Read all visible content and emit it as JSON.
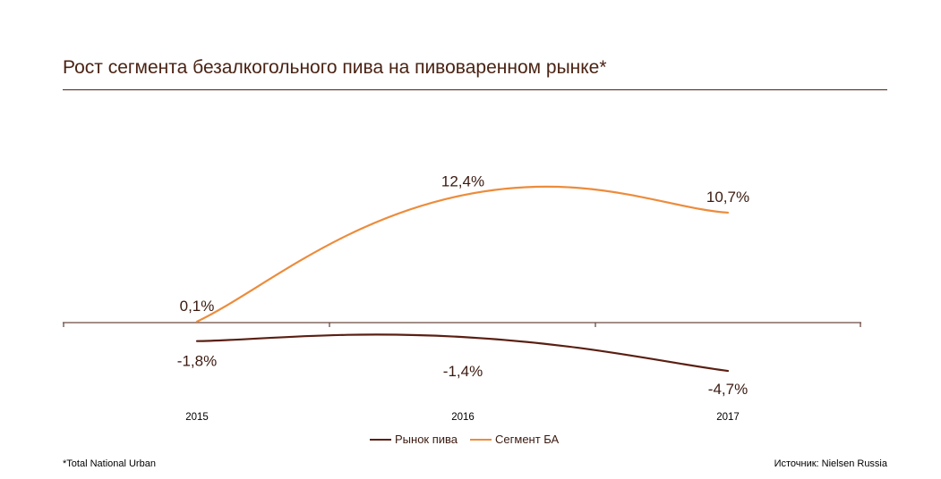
{
  "colors": {
    "beer_market": "#5a1f12",
    "na_segment": "#ec8c3c",
    "axis": "#6b4a40"
  },
  "footnote": "*Total National Urban",
  "source": "Источник: Nielsen Russia",
  "chart_data": {
    "type": "line",
    "title": "Рост сегмента безалкогольного пива на пивоваренном рынке*",
    "categories": [
      "2015",
      "2016",
      "2017"
    ],
    "series": [
      {
        "name": "Рынок пива",
        "values": [
          -1.8,
          -1.4,
          -4.7
        ],
        "labels": [
          "-1,8%",
          "-1,4%",
          "-4,7%"
        ],
        "color": "#5a1f12"
      },
      {
        "name": "Сегмент БА",
        "values": [
          0.1,
          12.4,
          10.7
        ],
        "labels": [
          "0,1%",
          "12,4%",
          "10,7%"
        ],
        "color": "#ec8c3c"
      }
    ],
    "ylim": [
      -6,
      14
    ],
    "grid": false,
    "legend": "bottom-center"
  }
}
